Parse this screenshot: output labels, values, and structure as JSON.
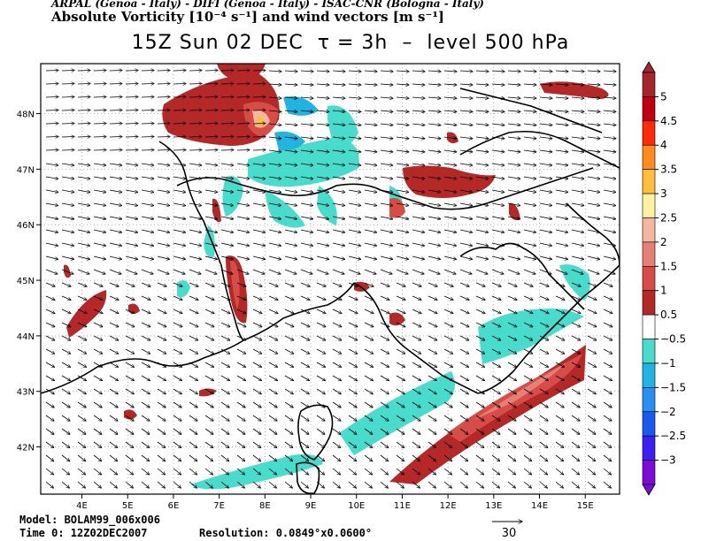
{
  "header": {
    "institutions": "ARPAL (Genoa - Italy)  -  DIFI (Genoa - Italy)  -  ISAC-CNR (Bologna - Italy)",
    "variables": "Absolute Vorticity [10⁻⁴ s⁻¹] and wind vectors [m s⁻¹]"
  },
  "title": "15Z Sun 02 DEC  τ = 3h  –  level 500 hPa",
  "footer": {
    "model": "Model: BOLAM99_006x006",
    "time": "Time 0: 12Z02DEC2007",
    "resolution": "Resolution: 0.0849°x0.0600°",
    "vector_ref": "30"
  },
  "chart_data": {
    "type": "heatmap",
    "x_ticks": [
      "4E",
      "5E",
      "6E",
      "7E",
      "8E",
      "9E",
      "10E",
      "11E",
      "12E",
      "13E",
      "14E",
      "15E"
    ],
    "x_values": [
      4,
      5,
      6,
      7,
      8,
      9,
      10,
      11,
      12,
      13,
      14,
      15
    ],
    "y_ticks": [
      "42N",
      "43N",
      "44N",
      "45N",
      "46N",
      "47N",
      "48N"
    ],
    "y_values": [
      42,
      43,
      44,
      45,
      46,
      47,
      48
    ],
    "xlim": [
      3.1,
      15.75
    ],
    "ylim": [
      41.15,
      48.9
    ],
    "grid": true,
    "colorbar": {
      "labels": [
        "5",
        "4.5",
        "4",
        "3.5",
        "3",
        "2.5",
        "2",
        "1.5",
        "1",
        "0.5",
        "−0.5",
        "−1",
        "−1.5",
        "−2",
        "−2.5",
        "−3"
      ],
      "colors": [
        "#a4262c",
        "#c00010",
        "#ff2a0a",
        "#ff8c1a",
        "#ffbe3c",
        "#fff2a0",
        "#f4b8a0",
        "#e48078",
        "#d84c48",
        "#b42828",
        "#ffffff",
        "#48dccc",
        "#20b4e0",
        "#2890f0",
        "#1c58f0",
        "#3c20f0",
        "#7c0cd8"
      ]
    },
    "wind": {
      "reference_speed": 30,
      "pattern": "westerly flow north of 45N, west-northwesterly to northwesterly south of 45N"
    }
  }
}
